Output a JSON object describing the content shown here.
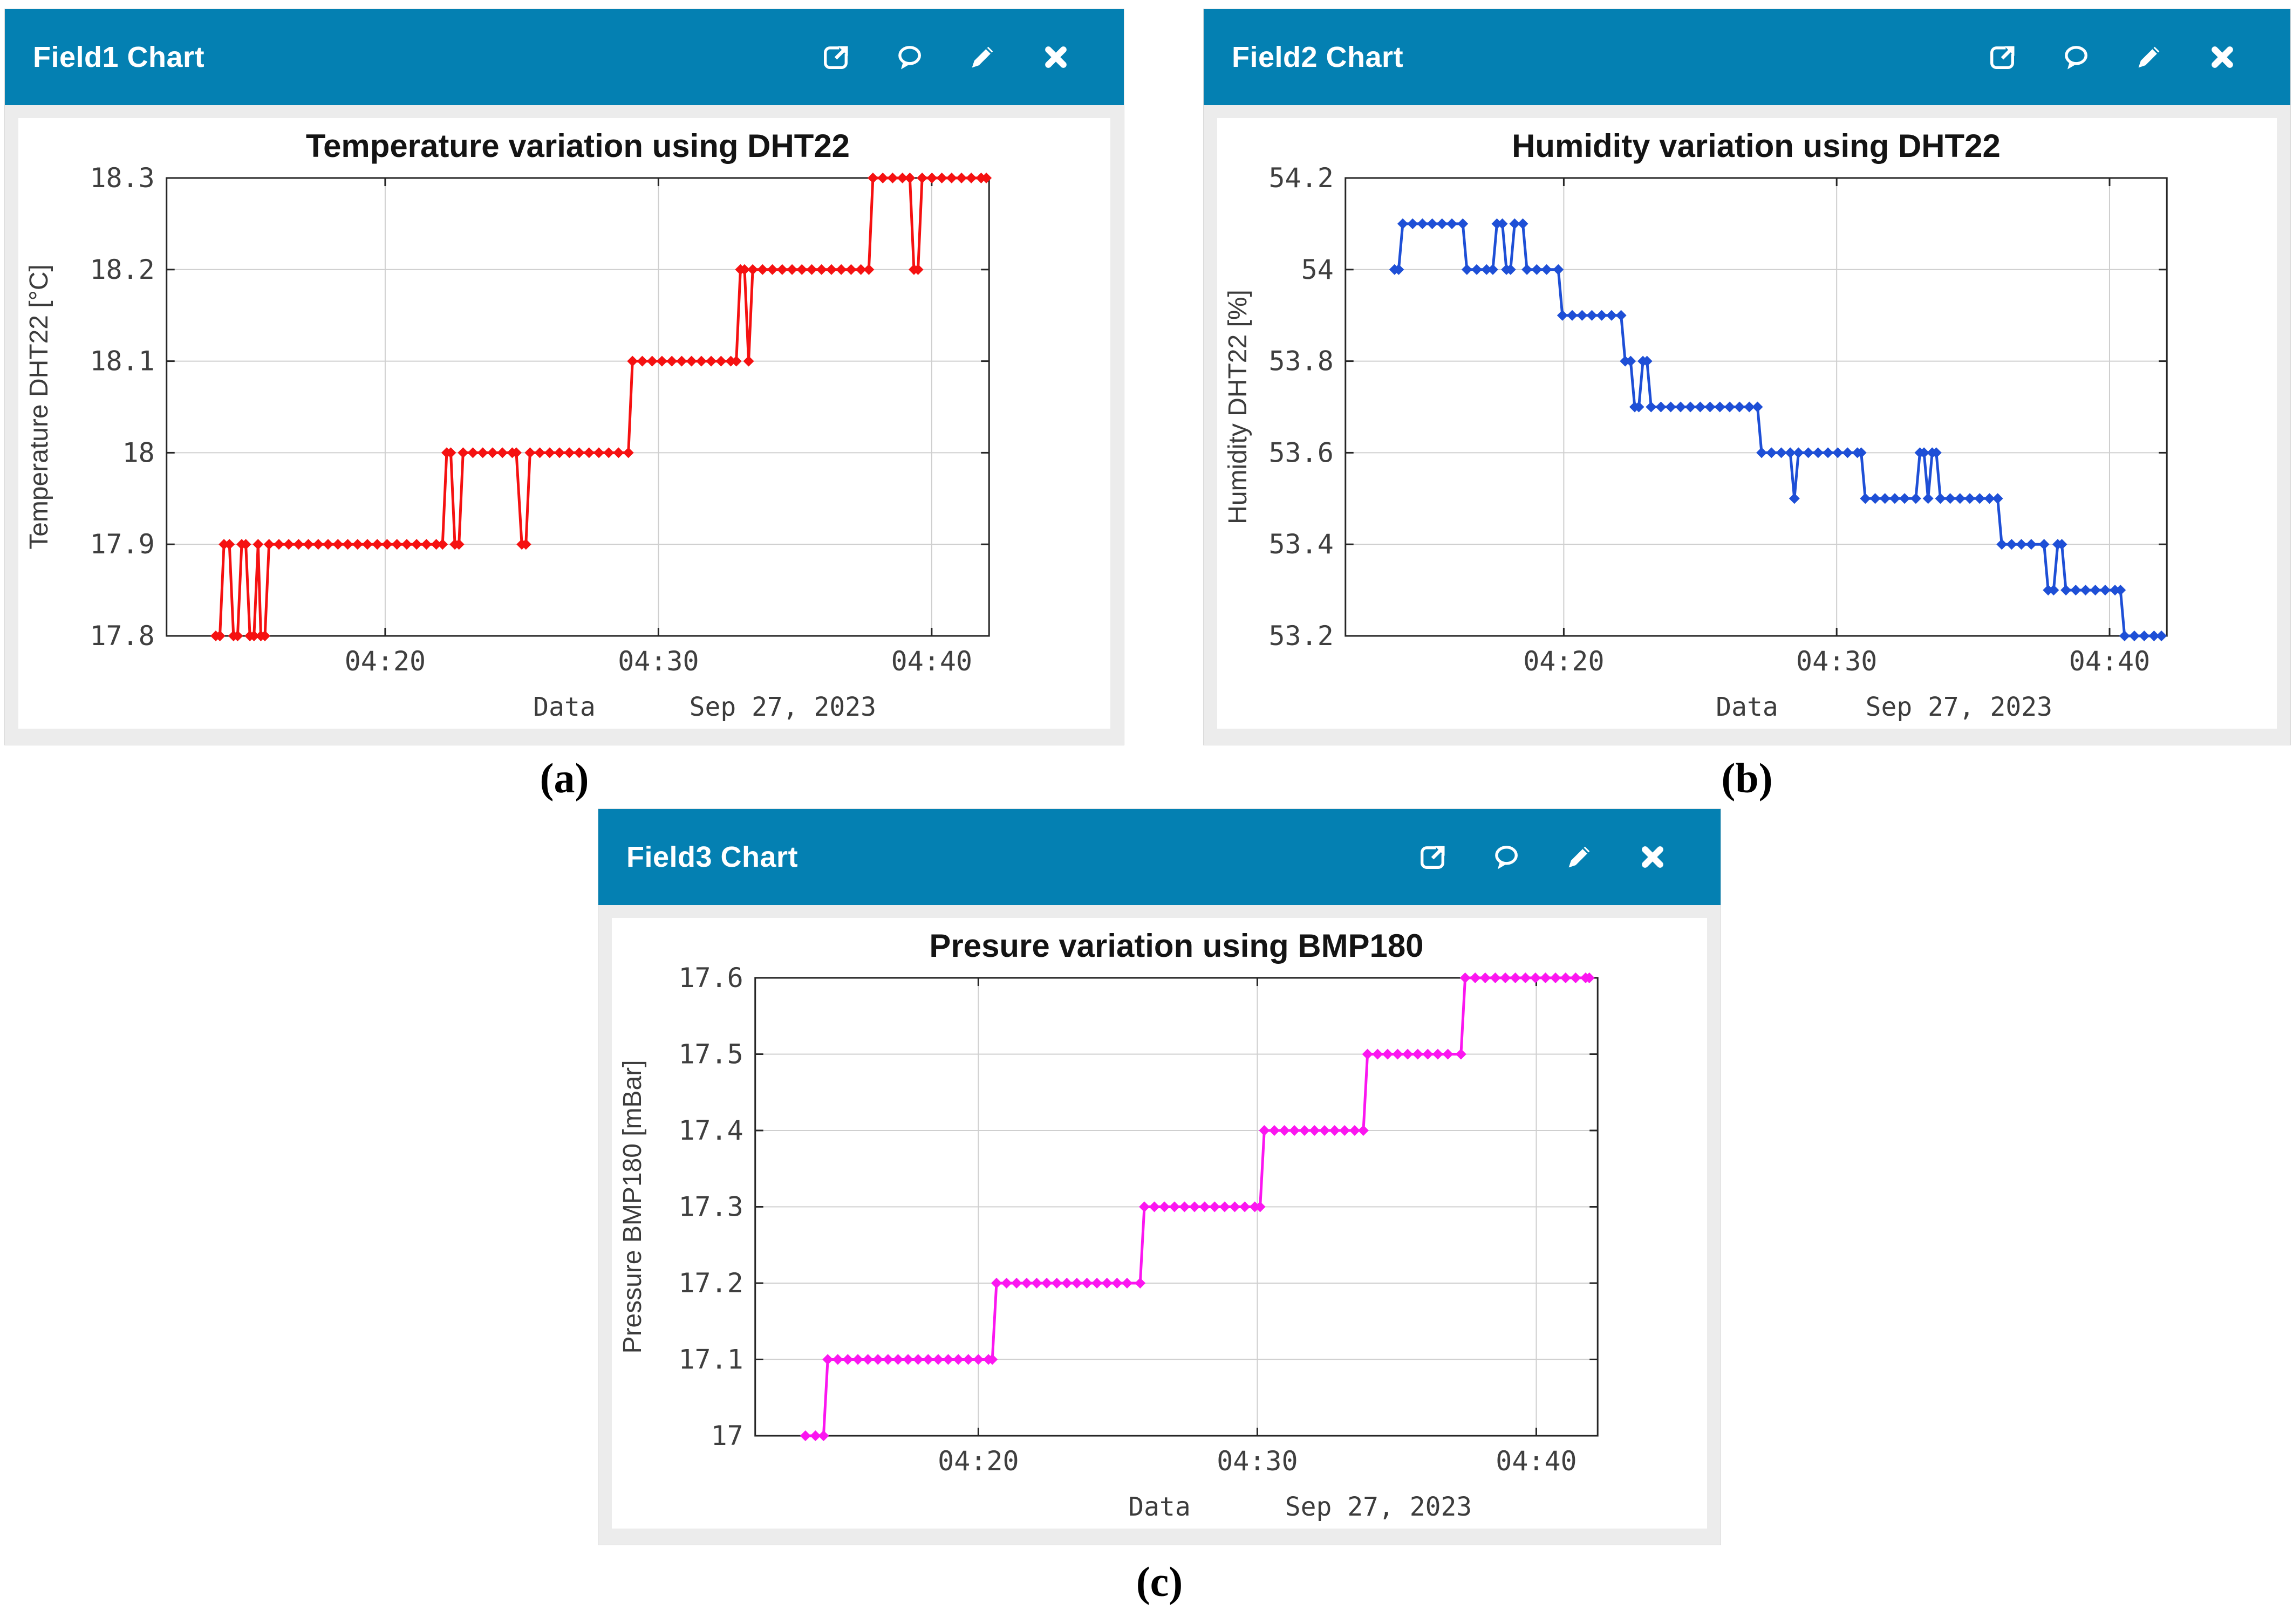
{
  "page": {
    "background": "#ffffff",
    "header_color": "#0480b2"
  },
  "panels": [
    {
      "header": {
        "title": "Field1 Chart",
        "icons": [
          "external-link-icon",
          "comment-icon",
          "pencil-icon",
          "close-icon"
        ]
      },
      "caption": "(a)"
    },
    {
      "header": {
        "title": "Field2 Chart",
        "icons": [
          "external-link-icon",
          "comment-icon",
          "pencil-icon",
          "close-icon"
        ]
      },
      "caption": "(b)"
    },
    {
      "header": {
        "title": "Field3 Chart",
        "icons": [
          "external-link-icon",
          "comment-icon",
          "pencil-icon",
          "close-icon"
        ]
      },
      "caption": "(c)"
    }
  ],
  "chart_data": [
    {
      "type": "line",
      "title": "Temperature variation using DHT22",
      "xlabel": "Data",
      "date_label": "Sep 27, 2023",
      "ylabel": "Temperature DHT22 [°C]",
      "series_color": "#f51111",
      "marker": "diamond",
      "grid": true,
      "xlim_minutes": [
        12.0,
        42.1
      ],
      "x_ticks": [
        {
          "label": "04:20",
          "minutes": 20
        },
        {
          "label": "04:30",
          "minutes": 30
        },
        {
          "label": "04:40",
          "minutes": 40
        }
      ],
      "ylim": [
        17.8,
        18.3
      ],
      "y_ticks": [
        {
          "label": "17.8",
          "value": 17.8
        },
        {
          "label": "17.9",
          "value": 17.9
        },
        {
          "label": "18",
          "value": 18.0
        },
        {
          "label": "18.1",
          "value": 18.1
        },
        {
          "label": "18.2",
          "value": 18.2
        },
        {
          "label": "18.3",
          "value": 18.3
        }
      ],
      "points_minutes_value": [
        [
          13.8,
          17.8
        ],
        [
          13.95,
          17.8
        ],
        [
          14.1,
          17.9
        ],
        [
          14.3,
          17.9
        ],
        [
          14.45,
          17.8
        ],
        [
          14.6,
          17.8
        ],
        [
          14.75,
          17.9
        ],
        [
          14.9,
          17.9
        ],
        [
          15.05,
          17.8
        ],
        [
          15.2,
          17.8
        ],
        [
          15.35,
          17.9
        ],
        [
          15.45,
          17.8
        ],
        [
          15.6,
          17.8
        ],
        [
          15.75,
          17.9
        ],
        [
          22.1,
          17.9
        ],
        [
          22.25,
          18.0
        ],
        [
          22.4,
          18.0
        ],
        [
          22.55,
          17.9
        ],
        [
          22.7,
          17.9
        ],
        [
          22.85,
          18.0
        ],
        [
          24.8,
          18.0
        ],
        [
          25.0,
          17.9
        ],
        [
          25.15,
          17.9
        ],
        [
          25.3,
          18.0
        ],
        [
          28.9,
          18.0
        ],
        [
          29.05,
          18.1
        ],
        [
          32.85,
          18.1
        ],
        [
          33.0,
          18.2
        ],
        [
          33.15,
          18.2
        ],
        [
          33.3,
          18.1
        ],
        [
          33.45,
          18.2
        ],
        [
          37.7,
          18.2
        ],
        [
          37.85,
          18.3
        ],
        [
          39.2,
          18.3
        ],
        [
          39.35,
          18.2
        ],
        [
          39.5,
          18.2
        ],
        [
          39.65,
          18.3
        ],
        [
          42.0,
          18.3
        ]
      ]
    },
    {
      "type": "line",
      "title": "Humidity variation using DHT22",
      "xlabel": "Data",
      "date_label": "Sep 27, 2023",
      "ylabel": "Humidity DHT22 [%]",
      "series_color": "#1e4fd6",
      "marker": "diamond",
      "grid": true,
      "xlim_minutes": [
        12.0,
        42.1
      ],
      "x_ticks": [
        {
          "label": "04:20",
          "minutes": 20
        },
        {
          "label": "04:30",
          "minutes": 30
        },
        {
          "label": "04:40",
          "minutes": 40
        }
      ],
      "ylim": [
        53.2,
        54.2
      ],
      "y_ticks": [
        {
          "label": "53.2",
          "value": 53.2
        },
        {
          "label": "53.4",
          "value": 53.4
        },
        {
          "label": "53.6",
          "value": 53.6
        },
        {
          "label": "53.8",
          "value": 53.8
        },
        {
          "label": "54",
          "value": 54.0
        },
        {
          "label": "54.2",
          "value": 54.2
        }
      ],
      "points_minutes_value": [
        [
          13.8,
          54.0
        ],
        [
          13.95,
          54.0
        ],
        [
          14.1,
          54.1
        ],
        [
          16.3,
          54.1
        ],
        [
          16.45,
          54.0
        ],
        [
          17.4,
          54.0
        ],
        [
          17.55,
          54.1
        ],
        [
          17.75,
          54.1
        ],
        [
          17.9,
          54.0
        ],
        [
          18.05,
          54.0
        ],
        [
          18.2,
          54.1
        ],
        [
          18.5,
          54.1
        ],
        [
          18.65,
          54.0
        ],
        [
          19.8,
          54.0
        ],
        [
          19.95,
          53.9
        ],
        [
          22.1,
          53.9
        ],
        [
          22.25,
          53.8
        ],
        [
          22.45,
          53.8
        ],
        [
          22.6,
          53.7
        ],
        [
          22.75,
          53.7
        ],
        [
          22.9,
          53.8
        ],
        [
          23.05,
          53.8
        ],
        [
          23.2,
          53.7
        ],
        [
          27.1,
          53.7
        ],
        [
          27.25,
          53.6
        ],
        [
          28.3,
          53.6
        ],
        [
          28.45,
          53.5
        ],
        [
          28.6,
          53.6
        ],
        [
          30.9,
          53.6
        ],
        [
          31.05,
          53.5
        ],
        [
          32.9,
          53.5
        ],
        [
          33.05,
          53.6
        ],
        [
          33.2,
          53.6
        ],
        [
          33.35,
          53.5
        ],
        [
          33.5,
          53.6
        ],
        [
          33.65,
          53.6
        ],
        [
          33.8,
          53.5
        ],
        [
          35.9,
          53.5
        ],
        [
          36.05,
          53.4
        ],
        [
          37.6,
          53.4
        ],
        [
          37.75,
          53.3
        ],
        [
          37.95,
          53.3
        ],
        [
          38.1,
          53.4
        ],
        [
          38.25,
          53.4
        ],
        [
          38.4,
          53.3
        ],
        [
          40.4,
          53.3
        ],
        [
          40.55,
          53.2
        ],
        [
          41.9,
          53.2
        ]
      ]
    },
    {
      "type": "line",
      "title": "Presure variation using BMP180",
      "xlabel": "Data",
      "date_label": "Sep 27, 2023",
      "ylabel": "Pressure BMP180 [mBar]",
      "series_color": "#fb16f0",
      "marker": "diamond",
      "grid": true,
      "xlim_minutes": [
        12.0,
        42.2
      ],
      "x_ticks": [
        {
          "label": "04:20",
          "minutes": 20
        },
        {
          "label": "04:30",
          "minutes": 30
        },
        {
          "label": "04:40",
          "minutes": 40
        }
      ],
      "ylim": [
        17.0,
        17.6
      ],
      "y_ticks": [
        {
          "label": "17",
          "value": 17.0
        },
        {
          "label": "17.1",
          "value": 17.1
        },
        {
          "label": "17.2",
          "value": 17.2
        },
        {
          "label": "17.3",
          "value": 17.3
        },
        {
          "label": "17.4",
          "value": 17.4
        },
        {
          "label": "17.5",
          "value": 17.5
        },
        {
          "label": "17.6",
          "value": 17.6
        }
      ],
      "points_minutes_value": [
        [
          13.8,
          17.0
        ],
        [
          14.45,
          17.0
        ],
        [
          14.6,
          17.1
        ],
        [
          20.5,
          17.1
        ],
        [
          20.65,
          17.2
        ],
        [
          25.8,
          17.2
        ],
        [
          25.95,
          17.3
        ],
        [
          30.1,
          17.3
        ],
        [
          30.25,
          17.4
        ],
        [
          33.8,
          17.4
        ],
        [
          33.95,
          17.5
        ],
        [
          37.3,
          17.5
        ],
        [
          37.45,
          17.6
        ],
        [
          41.9,
          17.6
        ]
      ]
    }
  ]
}
